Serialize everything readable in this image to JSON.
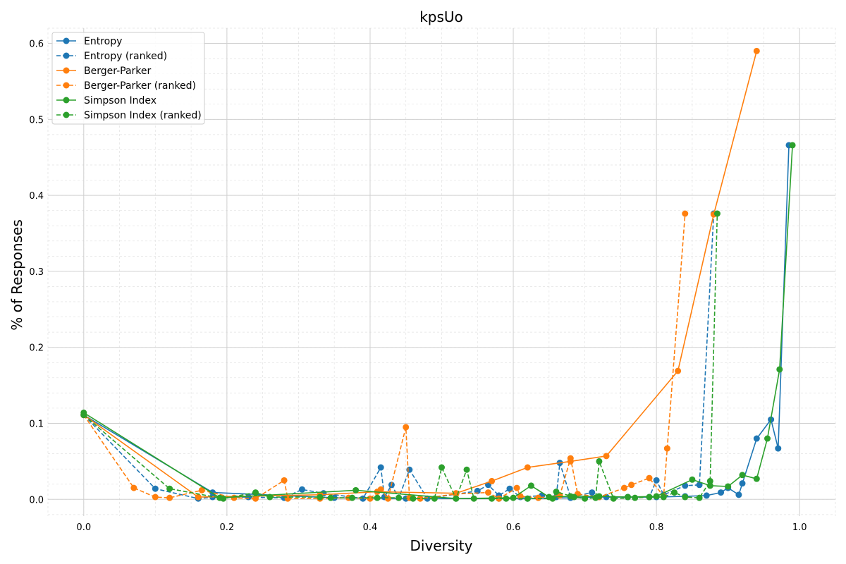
{
  "chart_data": {
    "type": "line",
    "title": "kpsUo",
    "xlabel": "Diversity",
    "ylabel": "% of Responses",
    "xlim": [
      -0.05,
      1.05
    ],
    "ylim": [
      -0.022,
      0.62
    ],
    "xticks": [
      "0.0",
      "0.2",
      "0.4",
      "0.6",
      "0.8",
      "1.0"
    ],
    "yticks": [
      "0.0",
      "0.1",
      "0.2",
      "0.3",
      "0.4",
      "0.5",
      "0.6"
    ],
    "grid": true,
    "legend_position": "top-left",
    "series": [
      {
        "name": "Entropy",
        "color": "#1f77b4",
        "dash": "solid",
        "x": [
          0.0,
          0.18,
          0.35,
          0.45,
          0.58,
          0.62,
          0.68,
          0.72,
          0.76,
          0.8,
          0.84,
          0.87,
          0.89,
          0.9,
          0.915,
          0.92,
          0.94,
          0.96,
          0.97,
          0.985
        ],
        "y": [
          0.111,
          0.009,
          0.002,
          0.001,
          0.001,
          0.001,
          0.002,
          0.003,
          0.003,
          0.003,
          0.004,
          0.005,
          0.009,
          0.015,
          0.006,
          0.021,
          0.08,
          0.105,
          0.067,
          0.466
        ]
      },
      {
        "name": "Entropy (ranked)",
        "color": "#1f77b4",
        "dash": "dashed",
        "x": [
          0.0,
          0.1,
          0.16,
          0.18,
          0.23,
          0.28,
          0.305,
          0.335,
          0.39,
          0.415,
          0.42,
          0.43,
          0.44,
          0.455,
          0.48,
          0.55,
          0.565,
          0.58,
          0.595,
          0.61,
          0.64,
          0.66,
          0.665,
          0.68,
          0.71,
          0.73,
          0.76,
          0.79,
          0.8,
          0.81,
          0.84,
          0.86,
          0.88
        ],
        "y": [
          0.111,
          0.014,
          0.001,
          0.003,
          0.003,
          0.002,
          0.013,
          0.008,
          0.001,
          0.042,
          0.003,
          0.019,
          0.002,
          0.039,
          0.001,
          0.011,
          0.019,
          0.005,
          0.014,
          0.003,
          0.005,
          0.003,
          0.048,
          0.003,
          0.009,
          0.003,
          0.003,
          0.003,
          0.025,
          0.006,
          0.018,
          0.019,
          0.376
        ]
      },
      {
        "name": "Berger-Parker",
        "color": "#ff7f0e",
        "dash": "solid",
        "x": [
          0.0,
          0.16,
          0.33,
          0.41,
          0.52,
          0.57,
          0.62,
          0.68,
          0.73,
          0.83,
          0.88,
          0.94
        ],
        "y": [
          0.111,
          0.003,
          0.006,
          0.01,
          0.008,
          0.024,
          0.042,
          0.05,
          0.057,
          0.169,
          0.375,
          0.59
        ]
      },
      {
        "name": "Berger-Parker (ranked)",
        "color": "#ff7f0e",
        "dash": "dashed",
        "x": [
          0.0,
          0.07,
          0.1,
          0.12,
          0.165,
          0.21,
          0.24,
          0.28,
          0.285,
          0.33,
          0.37,
          0.4,
          0.415,
          0.425,
          0.45,
          0.455,
          0.47,
          0.52,
          0.565,
          0.58,
          0.605,
          0.61,
          0.635,
          0.665,
          0.68,
          0.69,
          0.72,
          0.755,
          0.765,
          0.79,
          0.81,
          0.815,
          0.84
        ],
        "y": [
          0.111,
          0.015,
          0.003,
          0.002,
          0.012,
          0.002,
          0.001,
          0.025,
          0.001,
          0.001,
          0.002,
          0.001,
          0.013,
          0.001,
          0.095,
          0.002,
          0.001,
          0.007,
          0.009,
          0.001,
          0.015,
          0.004,
          0.002,
          0.005,
          0.054,
          0.007,
          0.003,
          0.015,
          0.019,
          0.028,
          0.004,
          0.067,
          0.376
        ]
      },
      {
        "name": "Simpson Index",
        "color": "#2ca02c",
        "dash": "solid",
        "x": [
          0.0,
          0.19,
          0.38,
          0.52,
          0.6,
          0.625,
          0.65,
          0.68,
          0.72,
          0.76,
          0.8,
          0.85,
          0.875,
          0.9,
          0.92,
          0.94,
          0.955,
          0.972,
          0.99
        ],
        "y": [
          0.114,
          0.002,
          0.012,
          0.001,
          0.002,
          0.018,
          0.003,
          0.004,
          0.004,
          0.003,
          0.004,
          0.026,
          0.018,
          0.017,
          0.032,
          0.027,
          0.08,
          0.171,
          0.466
        ]
      },
      {
        "name": "Simpson Index (ranked)",
        "color": "#2ca02c",
        "dash": "dashed",
        "x": [
          0.0,
          0.12,
          0.195,
          0.24,
          0.26,
          0.33,
          0.345,
          0.375,
          0.41,
          0.44,
          0.46,
          0.49,
          0.5,
          0.52,
          0.535,
          0.545,
          0.57,
          0.59,
          0.62,
          0.655,
          0.66,
          0.685,
          0.7,
          0.715,
          0.72,
          0.74,
          0.77,
          0.79,
          0.81,
          0.825,
          0.84,
          0.86,
          0.875,
          0.885
        ],
        "y": [
          0.111,
          0.014,
          0.001,
          0.009,
          0.003,
          0.003,
          0.002,
          0.002,
          0.002,
          0.002,
          0.001,
          0.001,
          0.042,
          0.001,
          0.039,
          0.001,
          0.001,
          0.001,
          0.001,
          0.001,
          0.01,
          0.003,
          0.001,
          0.002,
          0.05,
          0.001,
          0.002,
          0.003,
          0.003,
          0.009,
          0.003,
          0.002,
          0.024,
          0.376
        ]
      }
    ]
  }
}
